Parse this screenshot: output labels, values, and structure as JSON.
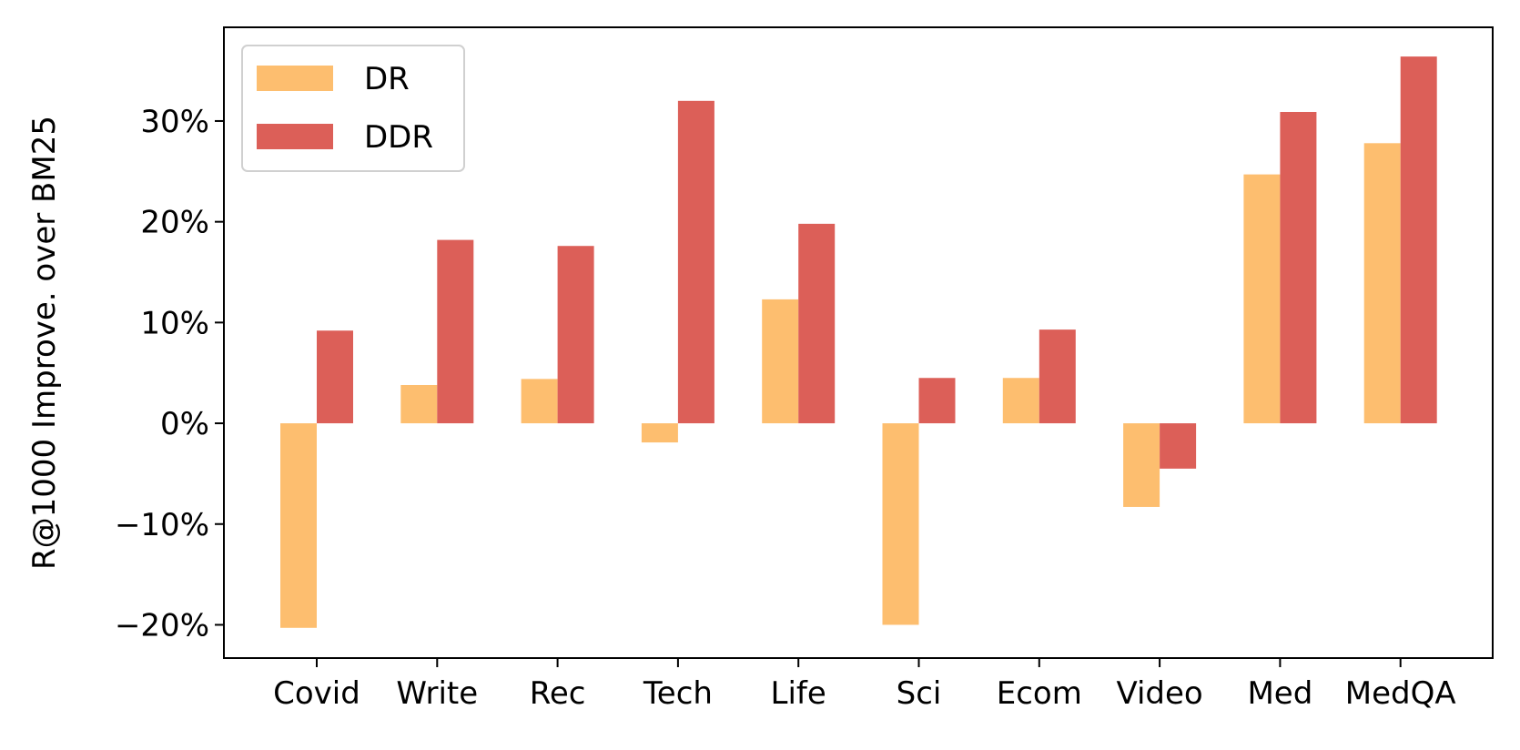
{
  "chart_data": {
    "type": "bar",
    "title": "",
    "xlabel": "",
    "ylabel": "R@1000 Improve. over BM25",
    "categories": [
      "Covid",
      "Write",
      "Rec",
      "Tech",
      "Life",
      "Sci",
      "Ecom",
      "Video",
      "Med",
      "MedQA"
    ],
    "series": [
      {
        "name": "DR",
        "color": "#fdbe6f",
        "values": [
          -20.3,
          3.8,
          4.4,
          -1.9,
          12.3,
          -20.0,
          4.5,
          -8.3,
          24.7,
          27.8
        ]
      },
      {
        "name": "DDR",
        "color": "#dc5f58",
        "values": [
          9.2,
          18.2,
          17.6,
          32.0,
          19.8,
          4.5,
          9.3,
          -4.5,
          30.9,
          36.4
        ]
      }
    ],
    "ylim": [
      -23.3,
      39.3
    ],
    "yticks": [
      -20,
      -10,
      0,
      10,
      20,
      30
    ],
    "ytick_labels": [
      "−20%",
      "−10%",
      "0%",
      "10%",
      "20%",
      "30%"
    ],
    "grid": false,
    "legend_position": "top-left"
  }
}
